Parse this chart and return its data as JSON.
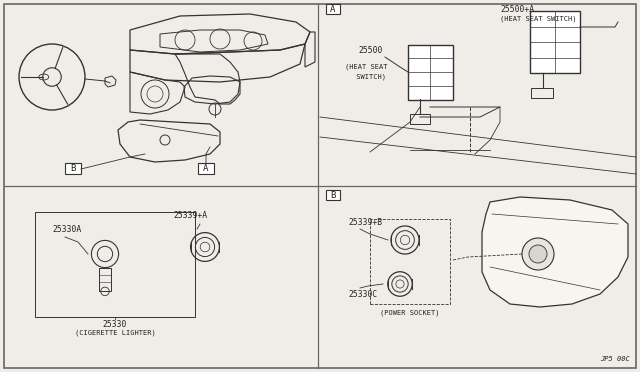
{
  "bg_color": "#f0ede8",
  "panel_bg": "#f0ede8",
  "line_color": "#2a2a2a",
  "fig_width": 6.4,
  "fig_height": 3.72,
  "dpi": 100,
  "border_color": "#888888",
  "part_number": "JP5 00C",
  "labels": {
    "panel_A": "A",
    "panel_B": "B",
    "part_25500": "25500",
    "part_25500_name": "(HEAT SEAT\n SWITCH)",
    "part_25500A": "25500+A",
    "part_25500A_name": "(HEAT SEAT SWITCH)",
    "part_25339A": "25339+A",
    "part_25330A": "25330A",
    "part_25330": "25330",
    "part_25330_name": "(CIGERETTE LIGHTER)",
    "part_25339B": "25339+B",
    "part_25330C": "25330C",
    "part_power_socket": "(POWER SOCKET)"
  },
  "colors": {
    "divider": "#555555",
    "sketch_line": "#333333",
    "label_box": "#333333",
    "text": "#222222"
  }
}
